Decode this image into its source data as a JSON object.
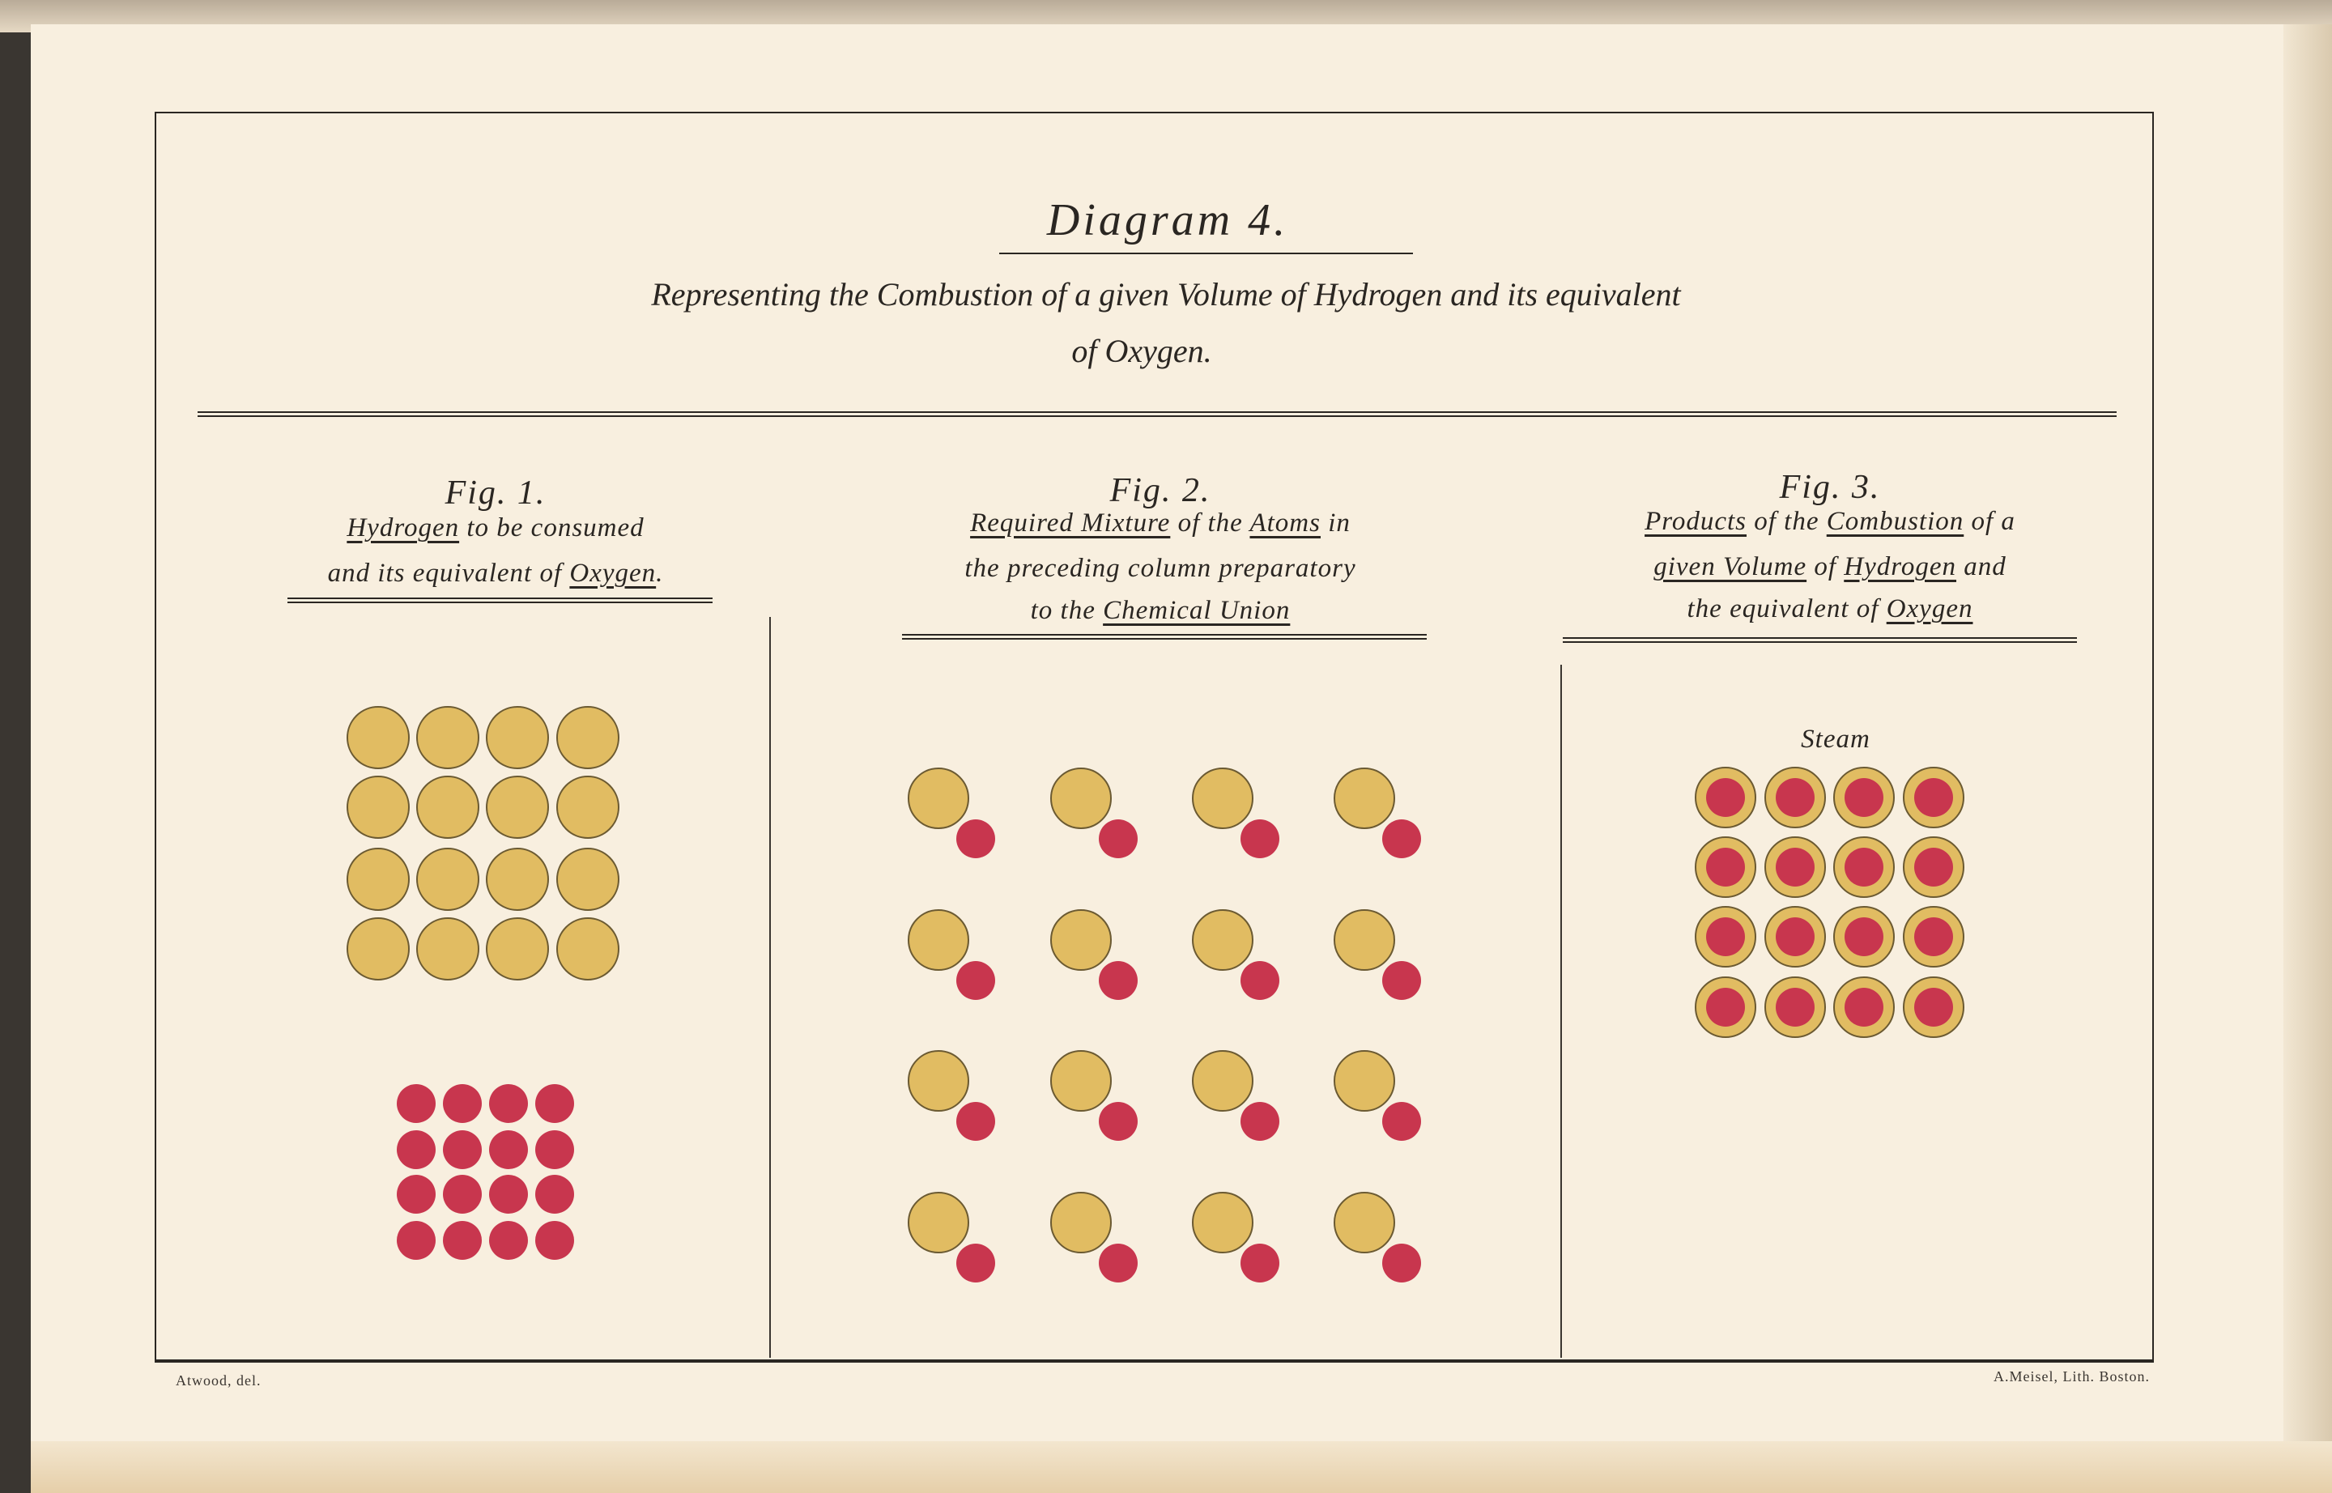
{
  "title": "Diagram 4.",
  "subtitle": [
    "Representing the Combustion of a given Volume of Hydrogen  and its equivalent",
    "of Oxygen."
  ],
  "figures": [
    {
      "heading": "Fig. 1.",
      "caption": [
        [
          {
            "t": "Hydrogen",
            "u": true
          },
          {
            "t": " to be consumed",
            "u": false
          }
        ],
        [
          {
            "t": "and its equivalent of ",
            "u": false
          },
          {
            "t": "Oxygen",
            "u": true
          },
          {
            "t": ".",
            "u": false
          }
        ]
      ],
      "hydrogen_atoms": 16,
      "oxygen_atoms": 16
    },
    {
      "heading": "Fig. 2.",
      "caption": [
        [
          {
            "t": "Required Mixture",
            "u": true
          },
          {
            "t": " of the ",
            "u": false
          },
          {
            "t": "Atoms",
            "u": true
          },
          {
            "t": " in",
            "u": false
          }
        ],
        [
          {
            "t": "the preceding column preparatory",
            "u": false
          }
        ],
        [
          {
            "t": "to the ",
            "u": false
          },
          {
            "t": "Chemical Union",
            "u": true
          }
        ]
      ],
      "pairs": 16
    },
    {
      "heading": "Fig. 3.",
      "caption": [
        [
          {
            "t": "Products",
            "u": true
          },
          {
            "t": " of the ",
            "u": false
          },
          {
            "t": "Combustion",
            "u": true
          },
          {
            "t": " of a",
            "u": false
          }
        ],
        [
          {
            "t": "given Volume",
            "u": true
          },
          {
            "t": " of ",
            "u": false
          },
          {
            "t": "Hydrogen",
            "u": true
          },
          {
            "t": " and",
            "u": false
          }
        ],
        [
          {
            "t": "the equivalent of ",
            "u": false
          },
          {
            "t": "Oxygen",
            "u": true
          }
        ]
      ],
      "label": "Steam",
      "steam_molecules": 16
    }
  ],
  "credits": {
    "left": "Atwood, del.",
    "right": "A.Meisel, Lith. Boston."
  },
  "colors": {
    "hydrogen": "#e1bc62",
    "oxygen": "#c8364e",
    "outline": "#6b5a32",
    "paper": "#f8efdf"
  }
}
